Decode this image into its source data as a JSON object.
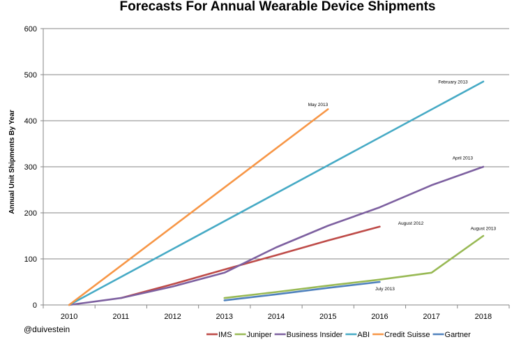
{
  "chart_data": {
    "type": "line",
    "title": "Forecasts For Annual Wearable Device Shipments",
    "xlabel": "",
    "ylabel": "Annual Unit Shipments By Year",
    "categories": [
      "2010",
      "2011",
      "2012",
      "2013",
      "2014",
      "2015",
      "2016",
      "2017",
      "2018"
    ],
    "yticks": [
      "0",
      "100",
      "200",
      "300",
      "400",
      "500",
      "600"
    ],
    "ylim": [
      0,
      600
    ],
    "grid": true,
    "legend_position": "bottom",
    "series": [
      {
        "name": "IMS",
        "color": "#BE4B48",
        "x": [
          "2011",
          "2012",
          "2013",
          "2014",
          "2015",
          "2016"
        ],
        "values": [
          15,
          45,
          77,
          108,
          140,
          170
        ]
      },
      {
        "name": "Juniper",
        "color": "#98B954",
        "x": [
          "2013",
          "2014",
          "2015",
          "2016",
          "2017",
          "2018"
        ],
        "values": [
          15,
          28,
          42,
          55,
          70,
          150
        ]
      },
      {
        "name": "Business Insider",
        "color": "#7D60A0",
        "x": [
          "2010",
          "2011",
          "2012",
          "2013",
          "2014",
          "2015",
          "2016",
          "2017",
          "2018"
        ],
        "values": [
          0,
          15,
          40,
          70,
          125,
          172,
          212,
          260,
          300
        ]
      },
      {
        "name": "ABI",
        "color": "#46AAC5",
        "x": [
          "2010",
          "2018"
        ],
        "values": [
          0,
          485
        ]
      },
      {
        "name": "Credit Suisse",
        "color": "#F79646",
        "x": [
          "2010",
          "2015"
        ],
        "values": [
          0,
          425
        ]
      },
      {
        "name": "Gartner",
        "color": "#4F81BD",
        "x": [
          "2013",
          "2014",
          "2015",
          "2016"
        ],
        "values": [
          10,
          23,
          37,
          50
        ]
      }
    ],
    "annotations": [
      {
        "text": "February 2013",
        "series": "ABI"
      },
      {
        "text": "May 2013",
        "series": "Credit Suisse"
      },
      {
        "text": "April 2013",
        "series": "Business Insider"
      },
      {
        "text": "August 2012",
        "series": "IMS"
      },
      {
        "text": "August 2013",
        "series": "Juniper"
      },
      {
        "text": "July 2013",
        "series": "Gartner"
      }
    ],
    "watermark": "@duivestein"
  }
}
